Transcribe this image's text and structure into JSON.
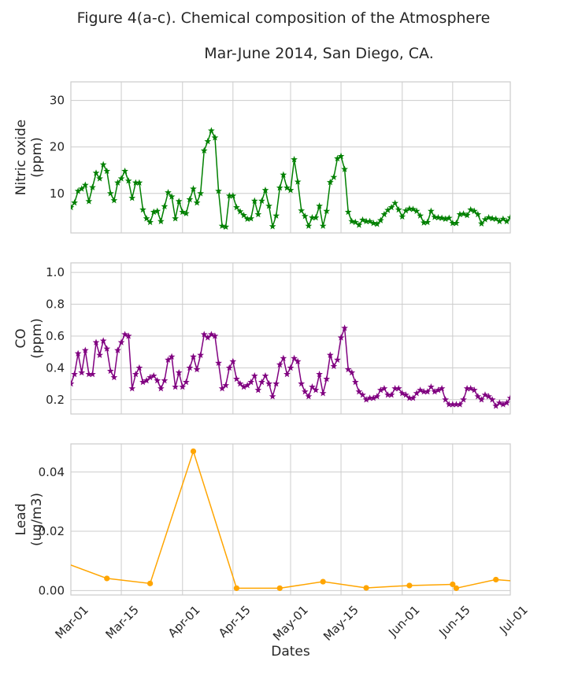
{
  "figure": {
    "title_line1": "Figure 4(a-c). Chemical composition of the Atmosphere",
    "title_line2": "Mar-June 2014, San Diego, CA."
  },
  "chart_data": [
    {
      "type": "line",
      "ylabel_line1": "Nitric oxide",
      "ylabel_line2": "(ppm)",
      "color": "#008000",
      "marker": "star",
      "ylim": [
        1.5,
        34
      ],
      "yticks": [
        10,
        20,
        30
      ],
      "ytick_labels": [
        "10",
        "20",
        "30"
      ],
      "xlim": [
        "2014-03-01",
        "2014-07-01"
      ],
      "show_xticklabels": false,
      "series": [
        {
          "x_start": "2014-03-01",
          "x_step_days": 1,
          "values": [
            7,
            8,
            10.5,
            11,
            11.8,
            8.3,
            11.3,
            14.4,
            13.2,
            16.2,
            14.8,
            10,
            8.5,
            12.3,
            13.2,
            14.8,
            12.7,
            9,
            12.3,
            12.3,
            6.5,
            4.6,
            3.8,
            6,
            6.2,
            4,
            7.2,
            10.2,
            9.3,
            4.6,
            8.3,
            6,
            5.7,
            8.7,
            11,
            8,
            10,
            19.2,
            21.2,
            23.5,
            22,
            10.5,
            3,
            2.8,
            9.5,
            9.5,
            7,
            6.1,
            5.3,
            4.5,
            4.6,
            8.4,
            5.5,
            8.4,
            10.7,
            7.3,
            2.9,
            5.2,
            11.2,
            14,
            11.2,
            10.7,
            17.3,
            12.5,
            6.3,
            5.1,
            3,
            4.8,
            4.8,
            7.3,
            3,
            6.2,
            12.4,
            13.5,
            17.5,
            18,
            15.2,
            6,
            4,
            3.8,
            3.2,
            4.3,
            4,
            4,
            3.6,
            3.4,
            4.2,
            5.5,
            6.4,
            7,
            7.9,
            6.5,
            5,
            6.3,
            6.7,
            6.6,
            6.2,
            5.2,
            3.7,
            3.8,
            6.2,
            4.9,
            4.8,
            4.7,
            4.5,
            4.7,
            3.6,
            3.6,
            5.5,
            5.6,
            5.3,
            6.5,
            6.2,
            5.5,
            3.5,
            4.4,
            4.8,
            4.6,
            4.5,
            4,
            4.5,
            4,
            4.8,
            5.2
          ]
        }
      ]
    },
    {
      "type": "line",
      "ylabel_line1": "CO",
      "ylabel_line2": "(ppm)",
      "color": "#800080",
      "marker": "star",
      "ylim": [
        0.11,
        1.06
      ],
      "yticks": [
        0.2,
        0.4,
        0.6,
        0.8,
        1.0
      ],
      "ytick_labels": [
        "0.2",
        "0.4",
        "0.6",
        "0.8",
        "1.0"
      ],
      "xlim": [
        "2014-03-01",
        "2014-07-01"
      ],
      "show_xticklabels": false,
      "series": [
        {
          "x_start": "2014-03-01",
          "x_step_days": 1,
          "values": [
            0.3,
            0.36,
            0.49,
            0.37,
            0.51,
            0.36,
            0.36,
            0.56,
            0.48,
            0.57,
            0.52,
            0.38,
            0.34,
            0.51,
            0.56,
            0.61,
            0.6,
            0.27,
            0.36,
            0.4,
            0.31,
            0.32,
            0.34,
            0.35,
            0.32,
            0.27,
            0.32,
            0.45,
            0.47,
            0.28,
            0.37,
            0.28,
            0.31,
            0.4,
            0.47,
            0.39,
            0.48,
            0.61,
            0.59,
            0.61,
            0.6,
            0.43,
            0.27,
            0.29,
            0.4,
            0.44,
            0.33,
            0.3,
            0.28,
            0.29,
            0.31,
            0.35,
            0.26,
            0.31,
            0.35,
            0.3,
            0.22,
            0.3,
            0.42,
            0.46,
            0.36,
            0.4,
            0.46,
            0.44,
            0.3,
            0.25,
            0.22,
            0.28,
            0.26,
            0.36,
            0.24,
            0.33,
            0.48,
            0.41,
            0.45,
            0.59,
            0.65,
            0.39,
            0.37,
            0.31,
            0.25,
            0.23,
            0.2,
            0.21,
            0.21,
            0.22,
            0.26,
            0.27,
            0.23,
            0.23,
            0.27,
            0.27,
            0.24,
            0.23,
            0.21,
            0.21,
            0.24,
            0.26,
            0.25,
            0.25,
            0.28,
            0.25,
            0.26,
            0.27,
            0.2,
            0.17,
            0.17,
            0.17,
            0.17,
            0.2,
            0.27,
            0.27,
            0.26,
            0.22,
            0.2,
            0.23,
            0.22,
            0.2,
            0.16,
            0.18,
            0.17,
            0.18,
            0.21
          ]
        }
      ]
    },
    {
      "type": "line",
      "ylabel_line1": "Lead",
      "ylabel_line2": "(ug/m3)",
      "xlabel": "Dates",
      "color": "#FFA500",
      "marker": "circle",
      "ylim": [
        -0.0015,
        0.0495
      ],
      "yticks": [
        0.0,
        0.02,
        0.04
      ],
      "ytick_labels": [
        "0.00",
        "0.02",
        "0.04"
      ],
      "xlim": [
        "2014-03-01",
        "2014-07-01"
      ],
      "show_xticklabels": true,
      "xticks": [
        "2014-03-01",
        "2014-03-15",
        "2014-04-01",
        "2014-04-15",
        "2014-05-01",
        "2014-05-15",
        "2014-06-01",
        "2014-06-15",
        "2014-07-01"
      ],
      "xtick_labels": [
        "Mar-01",
        "Mar-15",
        "Apr-01",
        "Apr-15",
        "May-01",
        "May-15",
        "Jun-01",
        "Jun-15",
        "Jul-01"
      ],
      "series": [
        {
          "points": [
            [
              "2014-02-27",
              0.0095
            ],
            [
              "2014-03-11",
              0.0041
            ],
            [
              "2014-03-23",
              0.0024
            ],
            [
              "2014-04-04",
              0.047
            ],
            [
              "2014-04-16",
              0.0008
            ],
            [
              "2014-04-28",
              0.0008
            ],
            [
              "2014-05-10",
              0.003
            ],
            [
              "2014-05-22",
              0.0009
            ],
            [
              "2014-06-03",
              0.0017
            ],
            [
              "2014-06-15",
              0.0021
            ],
            [
              "2014-06-16",
              0.0008
            ],
            [
              "2014-06-27",
              0.0037
            ],
            [
              "2014-07-09",
              0.0025
            ]
          ]
        }
      ]
    }
  ]
}
